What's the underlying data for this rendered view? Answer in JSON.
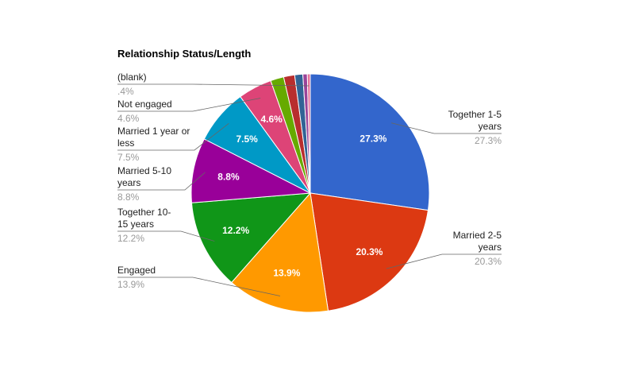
{
  "chart_data": {
    "type": "pie",
    "title": "Relationship Status/Length",
    "categories": [
      "Together 1-5 years",
      "Married 2-5 years",
      "Engaged",
      "Together 10-15 years",
      "Married 5-10 years",
      "Married 1 year or less",
      "Not engaged",
      null,
      null,
      null,
      null,
      "(blank)"
    ],
    "values": [
      27.3,
      20.3,
      13.9,
      12.2,
      8.8,
      7.5,
      4.6,
      1.8,
      1.5,
      1.1,
      0.6,
      0.4
    ],
    "value_labels": [
      "27.3%",
      "20.3%",
      "13.9%",
      "12.2%",
      "8.8%",
      "7.5%",
      "4.6%",
      null,
      null,
      null,
      null,
      ".4%"
    ],
    "colors": [
      "#3366cc",
      "#dc3912",
      "#ff9900",
      "#109618",
      "#990099",
      "#0099c6",
      "#dd4477",
      "#66aa00",
      "#b82e2e",
      "#316395",
      "#994499",
      "#e67399"
    ]
  }
}
